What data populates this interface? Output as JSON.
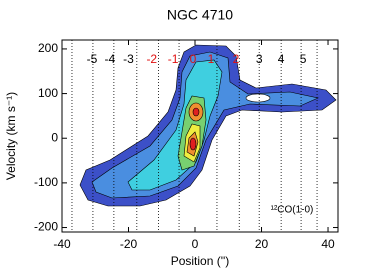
{
  "chart_data": {
    "type": "pv-diagram",
    "title": "NGC 4710",
    "x_label": "Position ('')",
    "y_label": "Velocity (km s⁻¹)",
    "annotation": "¹²CO(1-0)",
    "xlim": [
      -40,
      43
    ],
    "ylim": [
      -210,
      220
    ],
    "xticks": [
      -40,
      -20,
      0,
      20,
      40
    ],
    "yticks": [
      -200,
      -100,
      0,
      100,
      200
    ],
    "strip_lines": [
      -37,
      -30.7,
      -24.4,
      -17.5,
      -11,
      -4.8,
      6.6,
      13.3,
      19.3,
      25.9,
      31.9,
      36.7
    ],
    "strip_labels": [
      {
        "label": "-5",
        "x": -31,
        "color": "#000000"
      },
      {
        "label": "-4",
        "x": -25.6,
        "color": "#000000"
      },
      {
        "label": "-3",
        "x": -20,
        "color": "#000000"
      },
      {
        "label": "-2",
        "x": -13,
        "color": "#e01010"
      },
      {
        "label": "-1",
        "x": -6.6,
        "color": "#e01010"
      },
      {
        "label": "0",
        "x": -0.6,
        "color": "#e01010"
      },
      {
        "label": "1",
        "x": 4.8,
        "color": "#e01010"
      },
      {
        "label": "2",
        "x": 12.3,
        "color": "#e01010"
      },
      {
        "label": "3",
        "x": 19.3,
        "color": "#000000"
      },
      {
        "label": "4",
        "x": 25.9,
        "color": "#000000"
      },
      {
        "label": "5",
        "x": 32.5,
        "color": "#000000"
      }
    ]
  }
}
